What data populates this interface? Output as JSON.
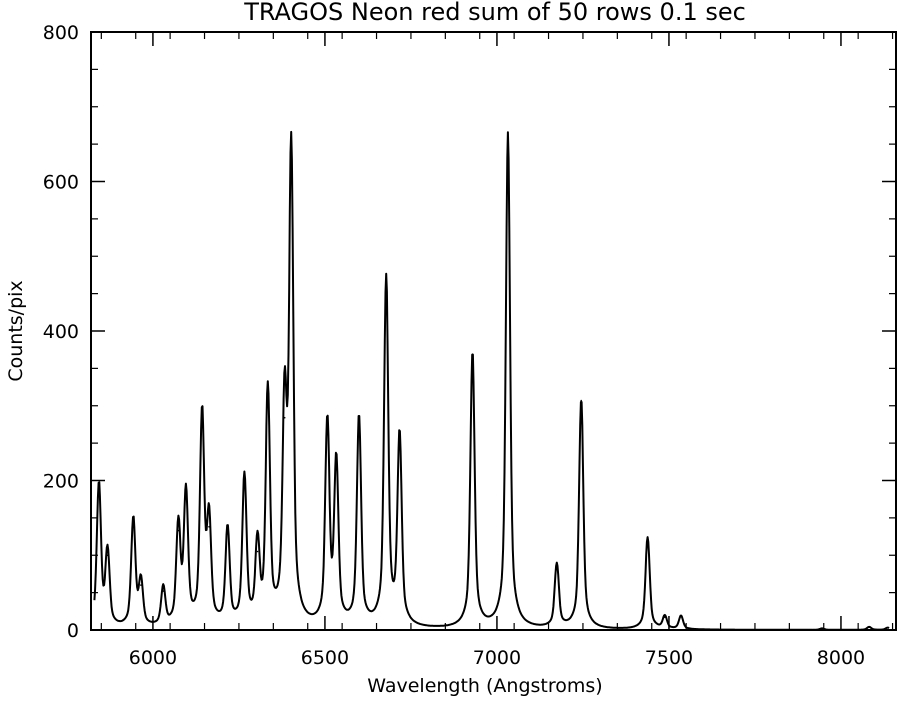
{
  "chart_data": {
    "type": "line",
    "title": "TRAGOS Neon red sum of 50 rows 0.1 sec",
    "xlabel": "Wavelength (Angstroms)",
    "ylabel": "Counts/pix",
    "xlim": [
      5820,
      8160
    ],
    "ylim": [
      0,
      800
    ],
    "xticks": [
      6000,
      6500,
      7000,
      7500,
      8000
    ],
    "yticks": [
      0,
      200,
      400,
      600,
      800
    ],
    "grid": false,
    "line_color": "#000000",
    "series": [
      {
        "peaks": [
          {
            "x": 5843,
            "y": 192
          },
          {
            "x": 5868,
            "y": 100
          },
          {
            "x": 5943,
            "y": 145
          },
          {
            "x": 5965,
            "y": 60
          },
          {
            "x": 6030,
            "y": 52
          },
          {
            "x": 6074,
            "y": 133
          },
          {
            "x": 6096,
            "y": 176
          },
          {
            "x": 6143,
            "y": 282
          },
          {
            "x": 6163,
            "y": 138
          },
          {
            "x": 6217,
            "y": 129
          },
          {
            "x": 6266,
            "y": 198
          },
          {
            "x": 6304,
            "y": 105
          },
          {
            "x": 6334,
            "y": 312
          },
          {
            "x": 6383,
            "y": 284
          },
          {
            "x": 6402,
            "y": 633
          },
          {
            "x": 6507,
            "y": 270
          },
          {
            "x": 6533,
            "y": 216
          },
          {
            "x": 6599,
            "y": 280
          },
          {
            "x": 6678,
            "y": 465
          },
          {
            "x": 6717,
            "y": 254
          },
          {
            "x": 6929,
            "y": 369
          },
          {
            "x": 7032,
            "y": 663
          },
          {
            "x": 7174,
            "y": 85
          },
          {
            "x": 7245,
            "y": 307
          },
          {
            "x": 7438,
            "y": 123
          },
          {
            "x": 7488,
            "y": 17
          },
          {
            "x": 7535,
            "y": 18
          },
          {
            "x": 7945,
            "y": 2
          },
          {
            "x": 8082,
            "y": 4
          },
          {
            "x": 8136,
            "y": 3
          }
        ]
      }
    ]
  }
}
